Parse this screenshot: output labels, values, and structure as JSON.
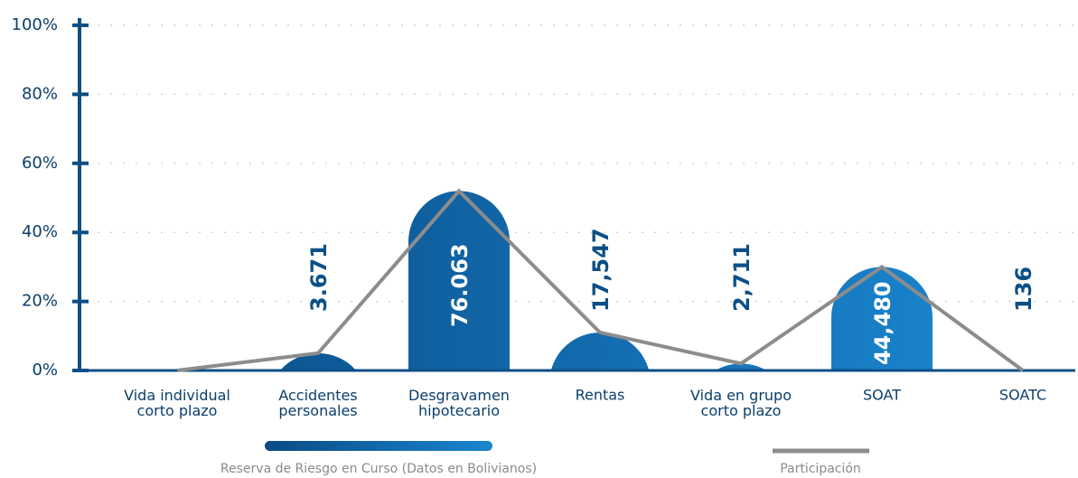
{
  "chart_data": {
    "type": "bar",
    "categories": [
      "Vida individual\ncorto plazo",
      "Accidentes\npersonales",
      "Desgravamen\nhipotecario",
      "Rentas",
      "Vida en grupo\ncorto plazo",
      "SOAT",
      "SOATC"
    ],
    "series": [
      {
        "name": "Reserva de Riesgo en Curso (Datos en Bolivianos)",
        "color": [
          "#0a4a84",
          "#1a86cf"
        ],
        "values": [
          null,
          3671,
          76063,
          17547,
          2711,
          44480,
          136
        ],
        "value_labels": [
          null,
          "3.671",
          "76.063",
          "17,547",
          "2,711",
          "44,480",
          "136"
        ]
      },
      {
        "name": "Participación",
        "color": "#8c8c8c",
        "values": [
          0,
          5,
          52,
          11,
          2,
          30,
          0
        ]
      }
    ],
    "ylim": [
      0,
      100
    ],
    "yticks": [
      {
        "value": 0,
        "label": "0%"
      },
      {
        "value": 20,
        "label": "20%"
      },
      {
        "value": 40,
        "label": "40%"
      },
      {
        "value": 60,
        "label": "60%"
      },
      {
        "value": 80,
        "label": "80%"
      },
      {
        "value": 100,
        "label": "100%"
      }
    ],
    "grid": true
  }
}
